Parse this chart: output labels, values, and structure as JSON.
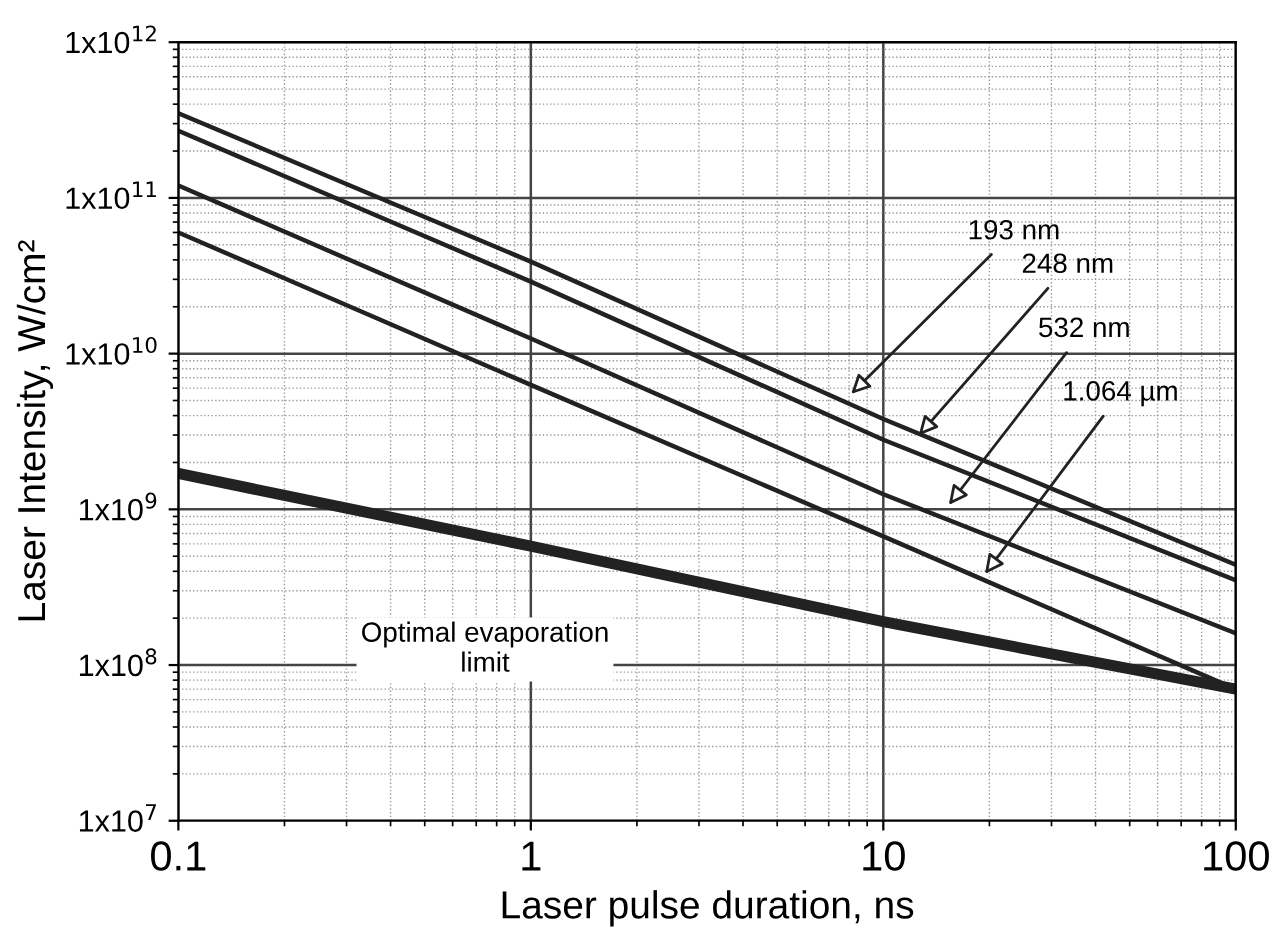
{
  "chart_data": {
    "type": "line",
    "xlabel": "Laser pulse duration, ns",
    "ylabel": "Laser Intensity, W/cm²",
    "log": "xy",
    "grid": true,
    "marker": "none",
    "line_style": "solid",
    "x": [
      0.1,
      1,
      10,
      100
    ],
    "series": [
      {
        "color": "#222222",
        "values": [
          350000000000.0,
          39000000000.0,
          3800000000.0,
          440000000.0
        ]
      },
      {
        "color": "#222222",
        "values": [
          270000000000.0,
          29000000000.0,
          2800000000.0,
          350000000.0
        ]
      },
      {
        "color": "#222222",
        "values": [
          120000000000.0,
          12500000000.0,
          1250000000.0,
          160000000.0
        ]
      },
      {
        "color": "#222222",
        "values": [
          60000000000.0,
          6300000000.0,
          670000000.0,
          70000000.0
        ]
      },
      {
        "color": "#222222",
        "values": [
          1700000000.0,
          580000000.0,
          190000000.0,
          70000000.0
        ]
      }
    ],
    "xlim": [
      0.1,
      100
    ],
    "ylim": [
      10000000.0,
      1000000000000.0
    ],
    "xticks": [
      0.1,
      1,
      10,
      100
    ],
    "yticks": [
      {
        "value": 10000000.0,
        "label": "1x10$^{7}$"
      },
      {
        "value": 100000000.0,
        "label": "1x10$^{8}$"
      },
      {
        "value": 1000000000.0,
        "label": "1x10$^{9}$"
      },
      {
        "value": 10000000000.0,
        "label": "1x10$^{10}$"
      },
      {
        "value": 100000000000.0,
        "label": "1x10$^{11}$"
      },
      {
        "value": 1000000000000.0,
        "label": "1x10$^{12}$"
      }
    ],
    "annotations": [
      {
        "text": "193 nm",
        "x": 7.9,
        "y": 5200000000.0
      },
      {
        "text": "248 nm",
        "x": 12.3,
        "y": 2800000000.0
      },
      {
        "text": "532 nm",
        "x": 15,
        "y": 1000000000.0
      },
      {
        "text": "1.064 µm",
        "x": 19,
        "y": 360000000.0
      },
      "Optimal evaporation\nlimit"
    ]
  }
}
